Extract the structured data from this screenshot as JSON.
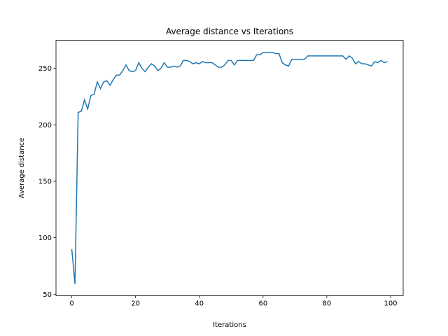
{
  "chart_data": {
    "type": "line",
    "title": "Average distance vs Iterations",
    "x_label": "Iterations",
    "y_label": "Average distance",
    "x": [
      0,
      1,
      2,
      3,
      4,
      5,
      6,
      7,
      8,
      9,
      10,
      11,
      12,
      13,
      14,
      15,
      16,
      17,
      18,
      19,
      20,
      21,
      22,
      23,
      24,
      25,
      26,
      27,
      28,
      29,
      30,
      31,
      32,
      33,
      34,
      35,
      36,
      37,
      38,
      39,
      40,
      41,
      42,
      43,
      44,
      45,
      46,
      47,
      48,
      49,
      50,
      51,
      52,
      53,
      54,
      55,
      56,
      57,
      58,
      59,
      60,
      61,
      62,
      63,
      64,
      65,
      66,
      67,
      68,
      69,
      70,
      71,
      72,
      73,
      74,
      75,
      76,
      77,
      78,
      79,
      80,
      81,
      82,
      83,
      84,
      85,
      86,
      87,
      88,
      89,
      90,
      91,
      92,
      93,
      94,
      95,
      96,
      97,
      98,
      99
    ],
    "series": [
      {
        "name": "Average distance",
        "color": "#1f77b4",
        "values": [
          90,
          59,
          211,
          212,
          222,
          214,
          226,
          227,
          238,
          232,
          238,
          239,
          235,
          240,
          244,
          244,
          248,
          253,
          248,
          247,
          248,
          255,
          250,
          247,
          251,
          254,
          252,
          248,
          250,
          255,
          251,
          251,
          252,
          251,
          252,
          257,
          257,
          256,
          254,
          255,
          254,
          256,
          255,
          255,
          255,
          253,
          251,
          251,
          253,
          257,
          257,
          253,
          257,
          257,
          257,
          257,
          257,
          257,
          262,
          262,
          264,
          264,
          264,
          264,
          263,
          263,
          255,
          253,
          252,
          258,
          258,
          258,
          258,
          258,
          261,
          261,
          261,
          261,
          261,
          261,
          261,
          261,
          261,
          261,
          261,
          261,
          258,
          261,
          259,
          254,
          256,
          254,
          254,
          253,
          252,
          256,
          255,
          257,
          255,
          256
        ]
      }
    ],
    "xlim": [
      -4.95,
      103.95
    ],
    "xticks": [
      0,
      20,
      40,
      60,
      80,
      100
    ],
    "ylim": [
      48.7,
      274.8
    ],
    "yticks": [
      50,
      100,
      150,
      200,
      250
    ]
  }
}
